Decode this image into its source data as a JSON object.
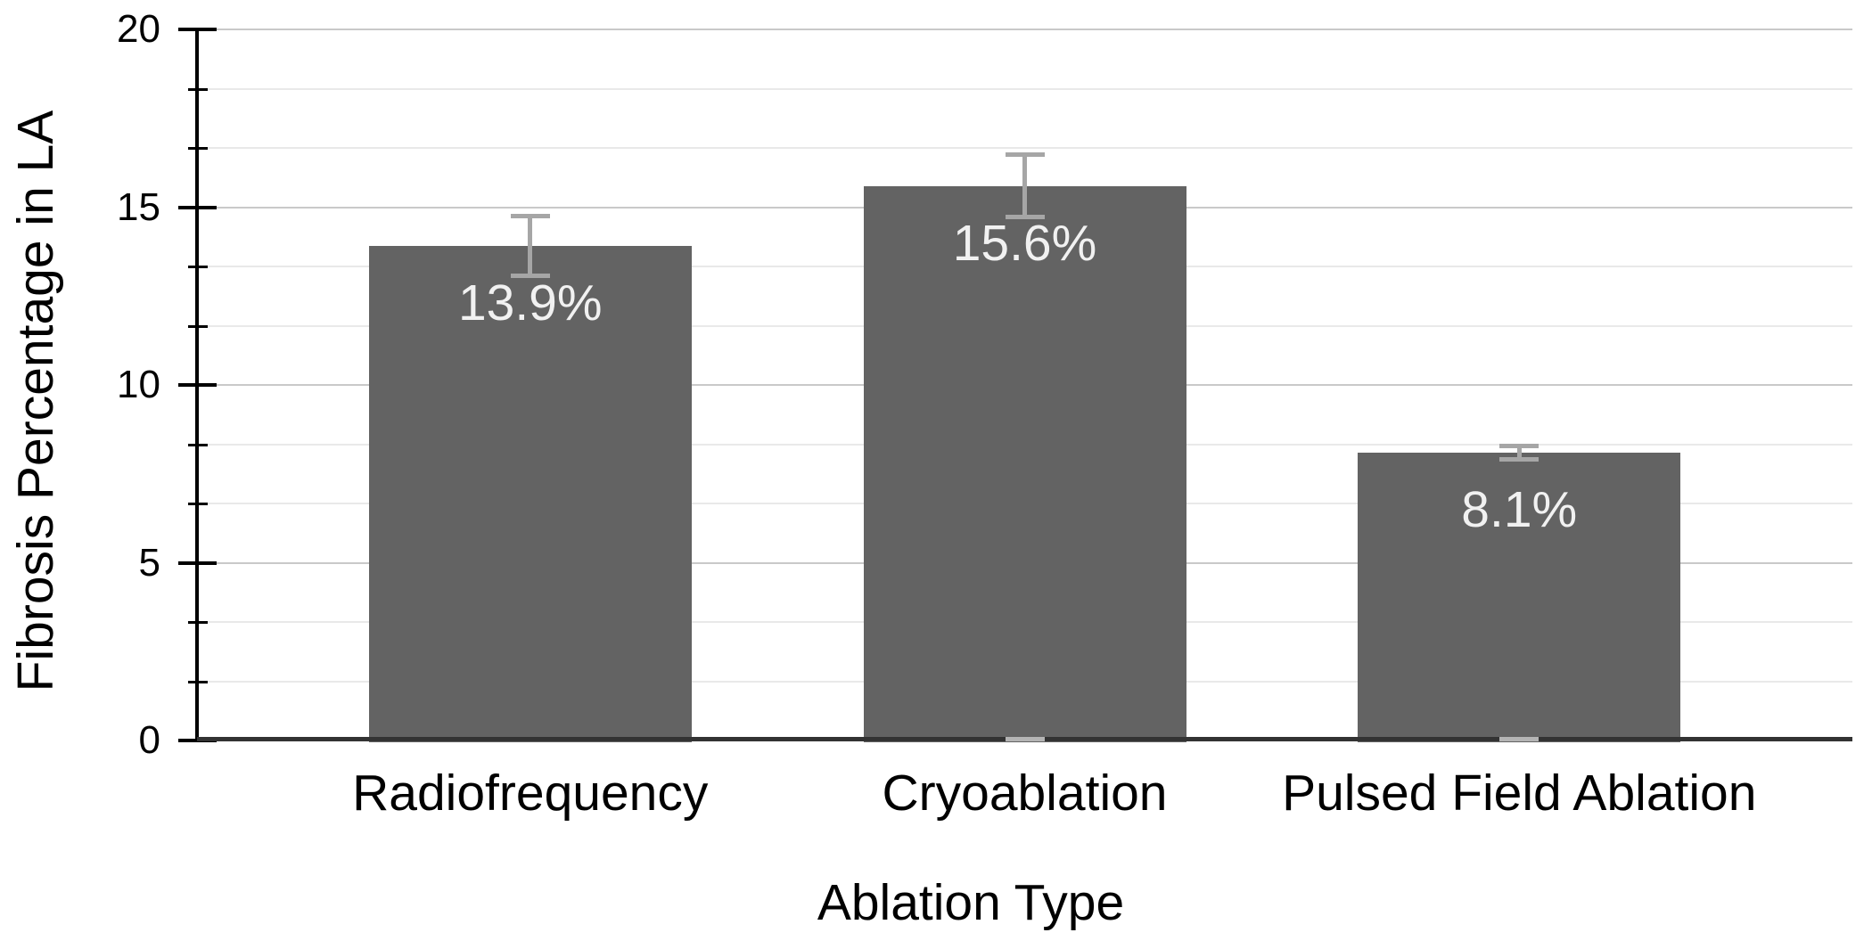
{
  "chart_data": {
    "type": "bar",
    "title": "",
    "xlabel": "Ablation Type",
    "ylabel": "Fibrosis Percentage in LA",
    "categories": [
      "Radiofrequency",
      "Cryoablation",
      "Pulsed Field Ablation"
    ],
    "values": [
      13.9,
      15.6,
      8.1
    ],
    "data_labels": [
      "13.9%",
      "15.6%",
      "8.1%"
    ],
    "error_bars": [
      0.85,
      0.9,
      0.2
    ],
    "base_error_caps": [
      false,
      true,
      true
    ],
    "ylim": [
      0,
      20
    ],
    "y_major_step": 5,
    "y_minor_divisions": 3,
    "ytick_labels": [
      "0",
      "5",
      "10",
      "15",
      "20"
    ],
    "grid": "horizontal, major and minor lines",
    "legend": "none",
    "colors": {
      "bar": "#636363",
      "data_label": "#f1f1f1",
      "error_bar": "#a6a6a6",
      "base_cap": "#b4b4b4",
      "grid_major": "#c9c9c9",
      "grid_minor": "#e9e9e9",
      "y_axis": "#000000",
      "x_axis": "#333333",
      "text": "#000000",
      "background": "#ffffff"
    }
  }
}
